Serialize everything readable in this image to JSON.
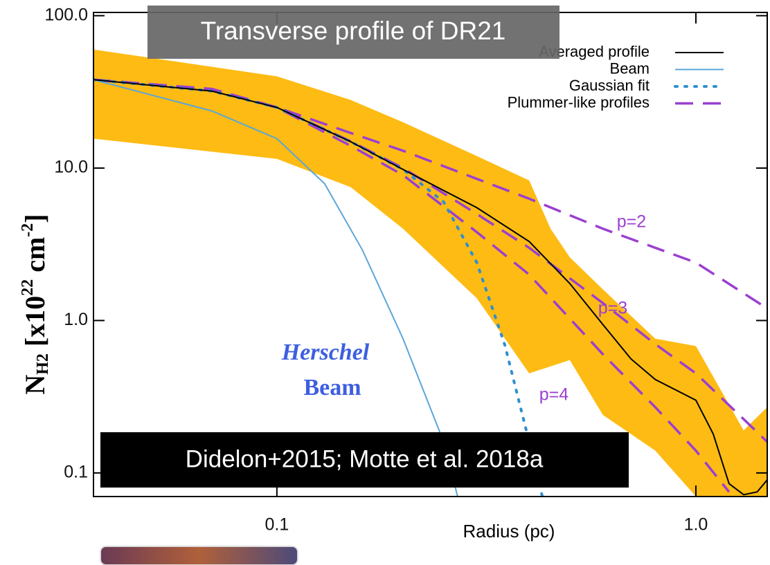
{
  "chart_data": {
    "type": "line",
    "title": "Transverse profile of DR21",
    "xlabel": "Radius (pc)",
    "ylabel": {
      "main": "N",
      "sub": "H2",
      "mid": " [x10",
      "sup1": "22",
      "unit": " cm",
      "sup2": "-2",
      "end": "]"
    },
    "log_x": true,
    "log_y": true,
    "xlim": [
      0.0365,
      1.48
    ],
    "ylim": [
      0.07,
      105
    ],
    "xticks": [
      {
        "value": 0.1,
        "label": "0.1"
      },
      {
        "value": 1,
        "label": "1.0"
      }
    ],
    "yticks": [
      {
        "value": 0.1,
        "label": "0.1"
      },
      {
        "value": 1,
        "label": "1.0"
      },
      {
        "value": 10,
        "label": "10.0"
      },
      {
        "value": 100,
        "label": "100.0"
      }
    ],
    "legend": "top-right",
    "band": {
      "color": "#fdbb14",
      "x": [
        0.0365,
        0.1,
        0.15,
        0.2,
        0.3,
        0.4,
        0.45,
        0.5,
        0.6,
        0.8,
        1.0,
        1.3,
        1.48
      ],
      "upper": [
        60,
        40,
        28,
        20,
        12,
        8.3,
        4.0,
        2.6,
        1.6,
        0.76,
        0.68,
        0.19,
        0.27
      ],
      "lower": [
        15.6,
        11.5,
        7.5,
        4.0,
        1.4,
        0.45,
        0.5,
        0.55,
        0.24,
        0.14,
        0.07,
        0.07,
        0.07
      ]
    },
    "series": [
      {
        "name": "Averaged profile",
        "color": "#000000",
        "dash": "solid",
        "x": [
          0.0365,
          0.07,
          0.1,
          0.15,
          0.2,
          0.3,
          0.4,
          0.5,
          0.6,
          0.7,
          0.8,
          1.0,
          1.1,
          1.2,
          1.3,
          1.4,
          1.48
        ],
        "values": [
          38,
          32,
          25,
          14.9,
          9.8,
          5.5,
          3.3,
          1.75,
          0.94,
          0.56,
          0.41,
          0.3,
          0.18,
          0.085,
          0.072,
          0.075,
          0.09
        ]
      },
      {
        "name": "Beam",
        "color": "#5aa6d8",
        "dash": "solid",
        "x": [
          0.0365,
          0.07,
          0.1,
          0.13,
          0.16,
          0.2,
          0.25,
          0.27
        ],
        "values": [
          38,
          23.7,
          15.6,
          7.9,
          2.9,
          0.76,
          0.16,
          0.07
        ]
      },
      {
        "name": "Gaussian fit",
        "color": "#2f8fd0",
        "dash": "dotted",
        "x": [
          0.0365,
          0.07,
          0.1,
          0.15,
          0.2,
          0.25,
          0.3,
          0.35,
          0.4,
          0.43
        ],
        "values": [
          38,
          32,
          25,
          14.9,
          9.8,
          6,
          2.4,
          0.69,
          0.16,
          0.07
        ]
      },
      {
        "name": "Plummer-like profiles",
        "color": "#9b3fd0",
        "dash": "dashed",
        "curves": [
          {
            "label": "p=2",
            "x": [
              0.0365,
              0.07,
              0.1,
              0.15,
              0.2,
              0.3,
              0.4,
              0.6,
              0.8,
              1.0,
              1.48
            ],
            "values": [
              38,
              33,
              25,
              17,
              13,
              8.5,
              6.3,
              4.0,
              3.0,
              2.4,
              1.2
            ]
          },
          {
            "label": "p=3",
            "x": [
              0.0365,
              0.07,
              0.1,
              0.15,
              0.2,
              0.3,
              0.4,
              0.6,
              0.8,
              1.0,
              1.48
            ],
            "values": [
              38,
              33,
              25,
              15,
              10,
              5,
              3.0,
              1.3,
              0.7,
              0.45,
              0.16
            ]
          },
          {
            "label": "p=4",
            "x": [
              0.0365,
              0.07,
              0.1,
              0.15,
              0.2,
              0.3,
              0.4,
              0.6,
              0.8,
              1.0,
              1.2
            ],
            "values": [
              38,
              33,
              25,
              14,
              9,
              3.8,
              2.0,
              0.6,
              0.27,
              0.14,
              0.075
            ]
          }
        ]
      }
    ],
    "annotations": {
      "herschel": "Herschel",
      "beam": "Beam",
      "citation": "Didelon+2015; Motte et al. 2018a"
    }
  }
}
